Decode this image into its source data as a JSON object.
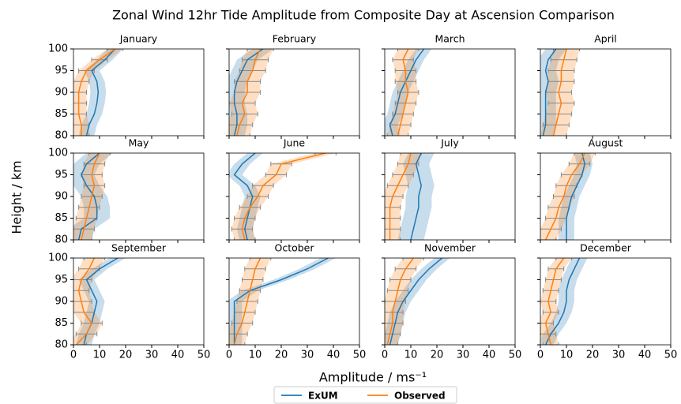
{
  "title": "Zonal Wind 12hr Tide Amplitude from Composite Day at Ascension Comparison",
  "x_label": "Amplitude / ms⁻¹",
  "y_label": "Height / km",
  "chart_data": [
    {
      "type": "line",
      "title": "January",
      "y": [
        80,
        82.5,
        85,
        87.5,
        90,
        92.5,
        95,
        97.5,
        100
      ],
      "xlim": [
        0,
        50
      ],
      "xticks": [
        0,
        10,
        20,
        30,
        40,
        50
      ],
      "ylim": [
        80,
        100
      ],
      "yticks": [
        80,
        85,
        90,
        95,
        100
      ],
      "series": [
        {
          "name": "ExUM",
          "color": "#1f77b4",
          "values": [
            5,
            6,
            8,
            9,
            9.5,
            9,
            7,
            12,
            16
          ],
          "errors": [
            3,
            3,
            3,
            3,
            3,
            3,
            3,
            3,
            3
          ]
        },
        {
          "name": "Observed",
          "color": "#ff7f0e",
          "values": [
            3,
            3,
            2,
            2,
            2,
            3,
            5,
            10,
            16
          ],
          "errors": [
            3,
            3,
            3,
            3,
            3,
            3,
            3,
            3,
            3
          ]
        }
      ]
    },
    {
      "type": "line",
      "title": "February",
      "y": [
        80,
        82.5,
        85,
        87.5,
        90,
        92.5,
        95,
        97.5,
        100
      ],
      "xlim": [
        0,
        50
      ],
      "xticks": [
        0,
        10,
        20,
        30,
        40,
        50
      ],
      "ylim": [
        80,
        100
      ],
      "yticks": [
        80,
        85,
        90,
        95,
        100
      ],
      "series": [
        {
          "name": "ExUM",
          "color": "#1f77b4",
          "values": [
            2,
            3,
            3,
            2,
            2,
            3,
            5,
            7,
            13
          ],
          "errors": [
            4,
            4,
            4,
            4,
            4,
            4,
            4,
            4,
            4
          ]
        },
        {
          "name": "Observed",
          "color": "#ff7f0e",
          "values": [
            3,
            4,
            6,
            5,
            7,
            7,
            9,
            10,
            12
          ],
          "errors": [
            5,
            5,
            5,
            5,
            5,
            5,
            5,
            5,
            5
          ]
        }
      ]
    },
    {
      "type": "line",
      "title": "March",
      "y": [
        80,
        82.5,
        85,
        87.5,
        90,
        92.5,
        95,
        97.5,
        100
      ],
      "xlim": [
        0,
        50
      ],
      "xticks": [
        0,
        10,
        20,
        30,
        40,
        50
      ],
      "ylim": [
        80,
        100
      ],
      "yticks": [
        80,
        85,
        90,
        95,
        100
      ],
      "series": [
        {
          "name": "ExUM",
          "color": "#1f77b4",
          "values": [
            3,
            2,
            4,
            5,
            6,
            8,
            10,
            12,
            15
          ],
          "errors": [
            3,
            3,
            3,
            3,
            3,
            3,
            3,
            3,
            3
          ]
        },
        {
          "name": "Observed",
          "color": "#ff7f0e",
          "values": [
            5,
            6,
            7,
            8,
            9,
            8,
            8,
            7,
            9
          ],
          "errors": [
            4,
            4,
            4,
            4,
            4,
            4,
            4,
            4,
            4
          ]
        }
      ]
    },
    {
      "type": "line",
      "title": "April",
      "y": [
        80,
        82.5,
        85,
        87.5,
        90,
        92.5,
        95,
        97.5,
        100
      ],
      "xlim": [
        0,
        50
      ],
      "xticks": [
        0,
        10,
        20,
        30,
        40,
        50
      ],
      "ylim": [
        80,
        100
      ],
      "yticks": [
        80,
        85,
        90,
        95,
        100
      ],
      "series": [
        {
          "name": "ExUM",
          "color": "#1f77b4",
          "values": [
            1,
            2,
            2,
            2,
            2,
            3,
            2,
            3,
            6
          ],
          "errors": [
            4,
            4,
            4,
            4,
            4,
            4,
            4,
            4,
            4
          ]
        },
        {
          "name": "Observed",
          "color": "#ff7f0e",
          "values": [
            5,
            6,
            7,
            8,
            7,
            8,
            8,
            9,
            10
          ],
          "errors": [
            5,
            5,
            5,
            5,
            5,
            5,
            5,
            5,
            5
          ]
        }
      ]
    },
    {
      "type": "line",
      "title": "May",
      "y": [
        80,
        82.5,
        85,
        87.5,
        90,
        92.5,
        95,
        97.5,
        100
      ],
      "xlim": [
        0,
        50
      ],
      "xticks": [
        0,
        10,
        20,
        30,
        40,
        50
      ],
      "ylim": [
        80,
        100
      ],
      "yticks": [
        80,
        85,
        90,
        95,
        100
      ],
      "series": [
        {
          "name": "ExUM",
          "color": "#1f77b4",
          "values": [
            2,
            3,
            9,
            9,
            8,
            5,
            3,
            5,
            10
          ],
          "errors": [
            5,
            5,
            5,
            5,
            5,
            5,
            5,
            5,
            5
          ]
        },
        {
          "name": "Observed",
          "color": "#ff7f0e",
          "values": [
            3,
            4,
            5,
            6,
            7,
            8,
            7,
            8,
            10
          ],
          "errors": [
            4,
            4,
            4,
            4,
            4,
            4,
            4,
            4,
            4
          ]
        }
      ]
    },
    {
      "type": "line",
      "title": "June",
      "y": [
        80,
        82.5,
        85,
        87.5,
        90,
        92.5,
        95,
        97.5,
        100
      ],
      "xlim": [
        0,
        50
      ],
      "xticks": [
        0,
        10,
        20,
        30,
        40,
        50
      ],
      "ylim": [
        80,
        100
      ],
      "yticks": [
        80,
        85,
        90,
        95,
        100
      ],
      "series": [
        {
          "name": "ExUM",
          "color": "#1f77b4",
          "values": [
            7,
            6,
            7,
            8,
            9,
            7,
            2,
            5,
            10
          ],
          "errors": [
            3,
            3,
            3,
            3,
            3,
            3,
            3,
            3,
            3
          ]
        },
        {
          "name": "Observed",
          "color": "#ff7f0e",
          "values": [
            6,
            5,
            6,
            8,
            11,
            13,
            18,
            20,
            37
          ],
          "errors": [
            4,
            4,
            4,
            4,
            4,
            4,
            4,
            4,
            4
          ]
        }
      ]
    },
    {
      "type": "line",
      "title": "July",
      "y": [
        80,
        82.5,
        85,
        87.5,
        90,
        92.5,
        95,
        97.5,
        100
      ],
      "xlim": [
        0,
        50
      ],
      "xticks": [
        0,
        10,
        20,
        30,
        40,
        50
      ],
      "ylim": [
        80,
        100
      ],
      "yticks": [
        80,
        85,
        90,
        95,
        100
      ],
      "series": [
        {
          "name": "ExUM",
          "color": "#1f77b4",
          "values": [
            10,
            11,
            12,
            13,
            13,
            14,
            13,
            12,
            14
          ],
          "errors": [
            5,
            5,
            5,
            5,
            5,
            5,
            5,
            5,
            5
          ]
        },
        {
          "name": "Observed",
          "color": "#ff7f0e",
          "values": [
            2,
            2,
            2,
            2,
            3,
            5,
            7,
            9,
            10
          ],
          "errors": [
            4,
            4,
            4,
            4,
            4,
            4,
            4,
            4,
            4
          ]
        }
      ]
    },
    {
      "type": "line",
      "title": "August",
      "y": [
        80,
        82.5,
        85,
        87.5,
        90,
        92.5,
        95,
        97.5,
        100
      ],
      "xlim": [
        0,
        50
      ],
      "xticks": [
        0,
        10,
        20,
        30,
        40,
        50
      ],
      "ylim": [
        80,
        100
      ],
      "yticks": [
        80,
        85,
        90,
        95,
        100
      ],
      "series": [
        {
          "name": "ExUM",
          "color": "#1f77b4",
          "values": [
            10,
            10,
            10,
            11,
            12,
            14,
            16,
            17,
            16
          ],
          "errors": [
            3,
            3,
            3,
            3,
            3,
            3,
            3,
            3,
            3
          ]
        },
        {
          "name": "Observed",
          "color": "#ff7f0e",
          "values": [
            2,
            4,
            6,
            7,
            9,
            10,
            12,
            15,
            17
          ],
          "errors": [
            4,
            4,
            4,
            4,
            4,
            4,
            4,
            4,
            4
          ]
        }
      ]
    },
    {
      "type": "line",
      "title": "September",
      "y": [
        80,
        82.5,
        85,
        87.5,
        90,
        92.5,
        95,
        97.5,
        100
      ],
      "xlim": [
        0,
        50
      ],
      "xticks": [
        0,
        10,
        20,
        30,
        40,
        50
      ],
      "ylim": [
        80,
        100
      ],
      "yticks": [
        80,
        85,
        90,
        95,
        100
      ],
      "series": [
        {
          "name": "ExUM",
          "color": "#1f77b4",
          "values": [
            4,
            5,
            7,
            8,
            9,
            7,
            5,
            10,
            17
          ],
          "errors": [
            3,
            3,
            3,
            3,
            3,
            3,
            3,
            3,
            3
          ]
        },
        {
          "name": "Observed",
          "color": "#ff7f0e",
          "values": [
            1,
            5,
            7,
            4,
            3,
            2,
            3,
            6,
            8
          ],
          "errors": [
            4,
            4,
            4,
            4,
            4,
            4,
            4,
            4,
            4
          ]
        }
      ]
    },
    {
      "type": "line",
      "title": "October",
      "y": [
        80,
        82.5,
        85,
        87.5,
        90,
        92.5,
        95,
        97.5,
        100
      ],
      "xlim": [
        0,
        50
      ],
      "xticks": [
        0,
        10,
        20,
        30,
        40,
        50
      ],
      "ylim": [
        80,
        100
      ],
      "yticks": [
        80,
        85,
        90,
        95,
        100
      ],
      "series": [
        {
          "name": "ExUM",
          "color": "#1f77b4",
          "values": [
            2,
            2,
            2,
            2,
            2,
            8,
            20,
            30,
            38
          ],
          "errors": [
            3,
            3,
            3,
            3,
            3,
            3,
            3,
            3,
            3
          ]
        },
        {
          "name": "Observed",
          "color": "#ff7f0e",
          "values": [
            2,
            3,
            5,
            6,
            7,
            8,
            9,
            10,
            12
          ],
          "errors": [
            4,
            4,
            4,
            4,
            4,
            4,
            4,
            4,
            4
          ]
        }
      ]
    },
    {
      "type": "line",
      "title": "November",
      "y": [
        80,
        82.5,
        85,
        87.5,
        90,
        92.5,
        95,
        97.5,
        100
      ],
      "xlim": [
        0,
        50
      ],
      "xticks": [
        0,
        10,
        20,
        30,
        40,
        50
      ],
      "ylim": [
        80,
        100
      ],
      "yticks": [
        80,
        85,
        90,
        95,
        100
      ],
      "series": [
        {
          "name": "ExUM",
          "color": "#1f77b4",
          "values": [
            2,
            3,
            4,
            5,
            7,
            10,
            13,
            17,
            22
          ],
          "errors": [
            3,
            3,
            3,
            3,
            3,
            3,
            3,
            3,
            3
          ]
        },
        {
          "name": "Observed",
          "color": "#ff7f0e",
          "values": [
            1,
            2,
            3,
            3,
            4,
            5,
            6,
            8,
            11
          ],
          "errors": [
            4,
            4,
            4,
            4,
            4,
            4,
            4,
            4,
            4
          ]
        }
      ]
    },
    {
      "type": "line",
      "title": "December",
      "y": [
        80,
        82.5,
        85,
        87.5,
        90,
        92.5,
        95,
        97.5,
        100
      ],
      "xlim": [
        0,
        50
      ],
      "xticks": [
        0,
        10,
        20,
        30,
        40,
        50
      ],
      "ylim": [
        80,
        100
      ],
      "yticks": [
        80,
        85,
        90,
        95,
        100
      ],
      "series": [
        {
          "name": "ExUM",
          "color": "#1f77b4",
          "values": [
            2,
            4,
            7,
            9,
            10,
            10,
            11,
            13,
            15
          ],
          "errors": [
            3,
            3,
            3,
            3,
            3,
            3,
            3,
            3,
            3
          ]
        },
        {
          "name": "Observed",
          "color": "#ff7f0e",
          "values": [
            4,
            3,
            2,
            4,
            3,
            4,
            5,
            6,
            9
          ],
          "errors": [
            3,
            3,
            3,
            3,
            3,
            3,
            3,
            3,
            3
          ]
        }
      ]
    }
  ]
}
